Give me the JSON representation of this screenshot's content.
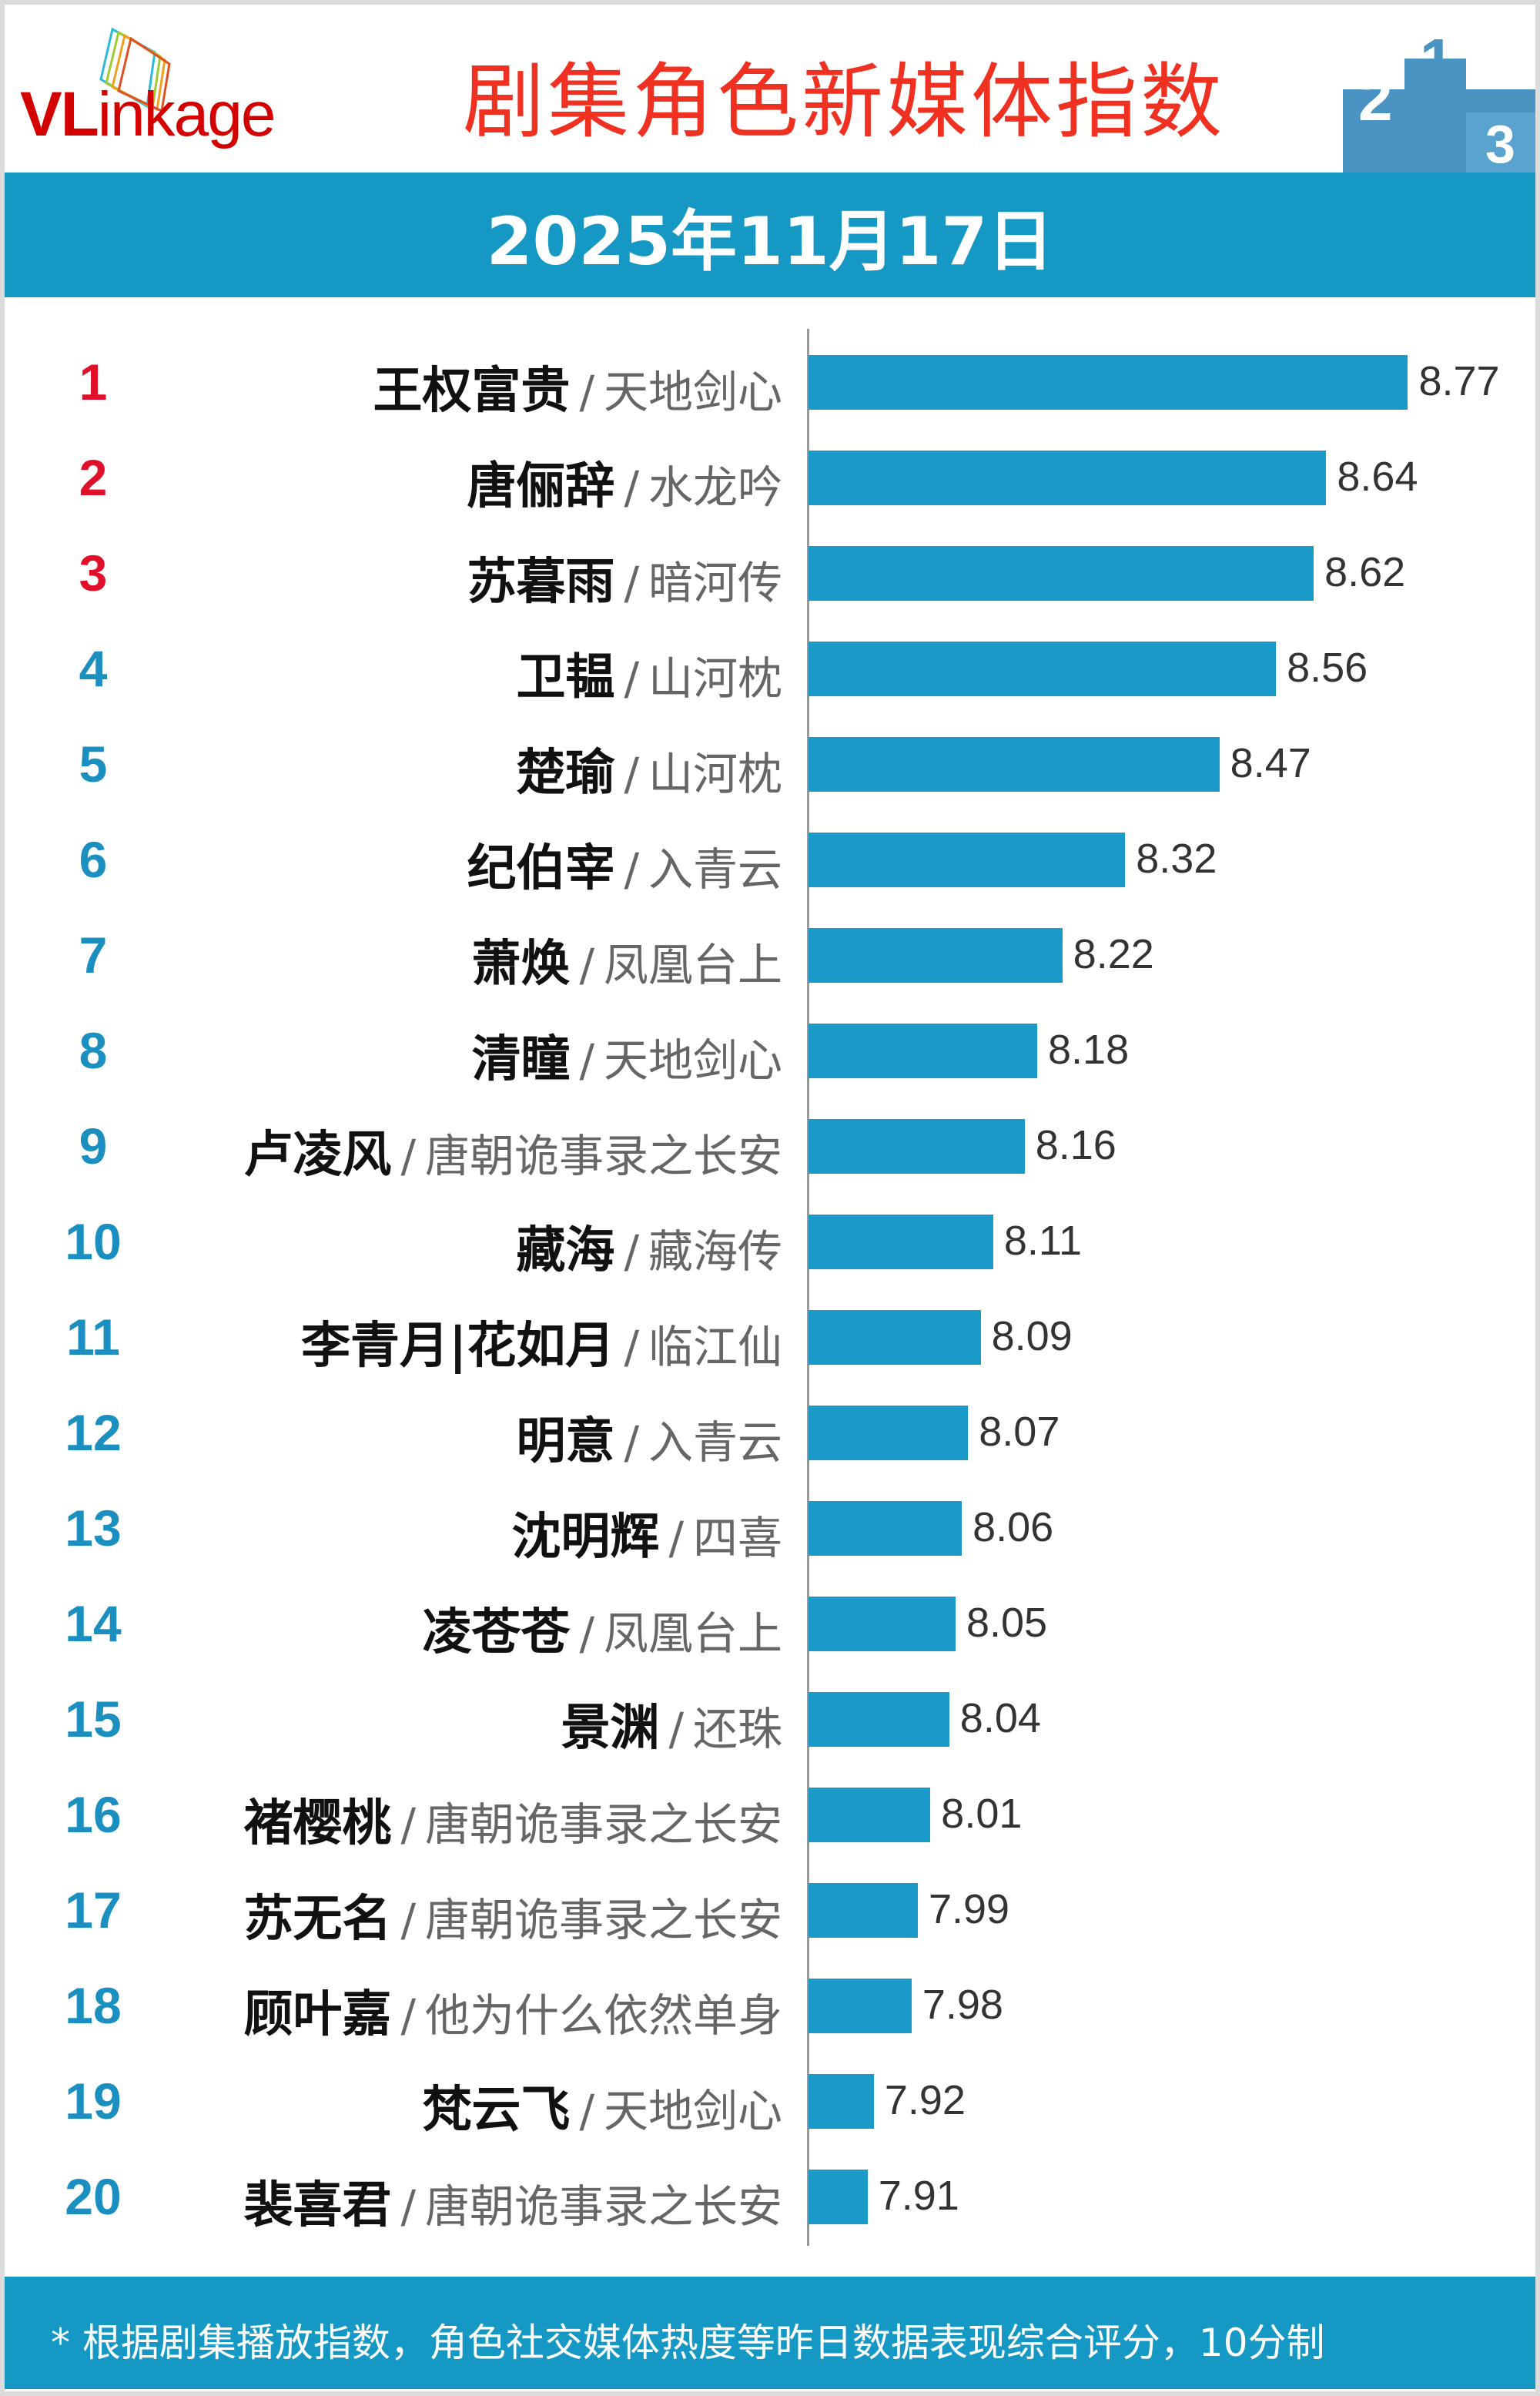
{
  "logo": {
    "text_bold": "VL",
    "text_rest": "inkage"
  },
  "header": {
    "title": "剧集角色新媒体指数",
    "date": "2025年11月17日"
  },
  "colors": {
    "bar": "#1a9ac8",
    "top3_rank": "#e0102a",
    "rank": "#1a8fc0",
    "band": "#1598c4",
    "title": "#f03020"
  },
  "chart_data": {
    "type": "bar",
    "orientation": "horizontal",
    "ranks": [
      "1",
      "2",
      "3",
      "4",
      "5",
      "6",
      "7",
      "8",
      "9",
      "10",
      "11",
      "12",
      "13",
      "14",
      "15",
      "16",
      "17",
      "18",
      "19",
      "20"
    ],
    "names": [
      "王权富贵",
      "唐俪辞",
      "苏暮雨",
      "卫韫",
      "楚瑜",
      "纪伯宰",
      "萧焕",
      "清瞳",
      "卢凌风",
      "藏海",
      "李青月|花如月",
      "明意",
      "沈明辉",
      "凌苍苍",
      "景渊",
      "褚樱桃",
      "苏无名",
      "顾叶嘉",
      "梵云飞",
      "裴喜君"
    ],
    "shows": [
      "天地剑心",
      "水龙吟",
      "暗河传",
      "山河枕",
      "山河枕",
      "入青云",
      "凤凰台上",
      "天地剑心",
      "唐朝诡事录之长安",
      "藏海传",
      "临江仙",
      "入青云",
      "四喜",
      "凤凰台上",
      "还珠",
      "唐朝诡事录之长安",
      "唐朝诡事录之长安",
      "他为什么依然单身",
      "天地剑心",
      "唐朝诡事录之长安"
    ],
    "values": [
      8.77,
      8.64,
      8.62,
      8.56,
      8.47,
      8.32,
      8.22,
      8.18,
      8.16,
      8.11,
      8.09,
      8.07,
      8.06,
      8.05,
      8.04,
      8.01,
      7.99,
      7.98,
      7.92,
      7.91
    ],
    "value_labels": [
      "8.77",
      "8.64",
      "8.62",
      "8.56",
      "8.47",
      "8.32",
      "8.22",
      "8.18",
      "8.16",
      "8.11",
      "8.09",
      "8.07",
      "8.06",
      "8.05",
      "8.04",
      "8.01",
      "7.99",
      "7.98",
      "7.92",
      "7.91"
    ],
    "separator": "/",
    "grid": false
  },
  "footer": {
    "note": "* 根据剧集播放指数，角色社交媒体热度等昨日数据表现综合评分，10分制"
  }
}
